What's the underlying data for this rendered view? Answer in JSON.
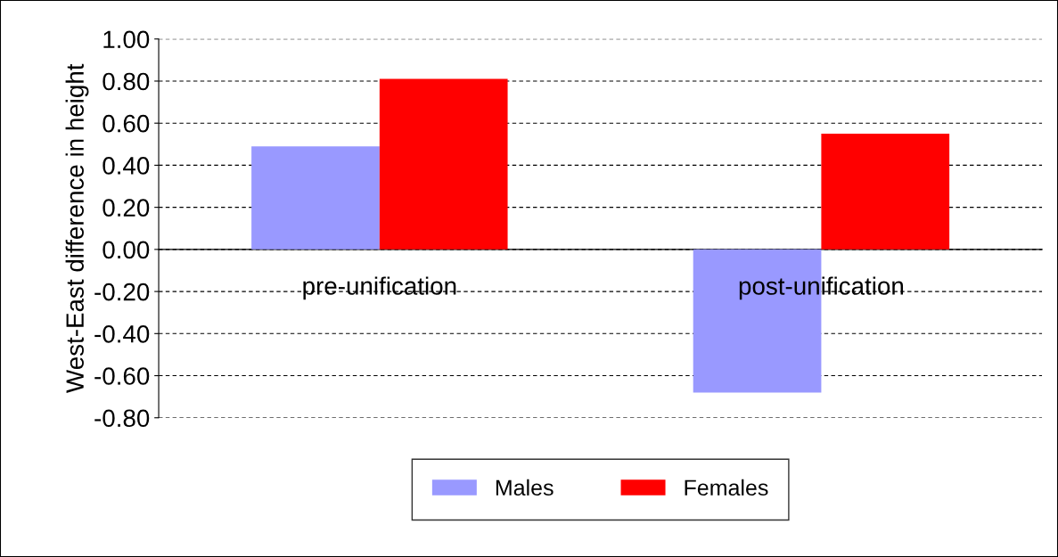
{
  "chart_data": {
    "type": "bar",
    "ylabel": "West-East difference in height",
    "categories": [
      "pre-unification",
      "post-unification"
    ],
    "series": [
      {
        "name": "Males",
        "color": "#9999ff",
        "values": [
          0.49,
          -0.68
        ]
      },
      {
        "name": "Females",
        "color": "#ff0000",
        "values": [
          0.81,
          0.55
        ]
      }
    ],
    "ylim": [
      -0.8,
      1.0
    ],
    "yticks": [
      {
        "value": -0.8,
        "label": "-0.80"
      },
      {
        "value": -0.6,
        "label": "-0.60"
      },
      {
        "value": -0.4,
        "label": "-0.40"
      },
      {
        "value": -0.2,
        "label": "-0.20"
      },
      {
        "value": 0,
        "label": "0.00"
      },
      {
        "value": 0.2,
        "label": "0.20"
      },
      {
        "value": 0.4,
        "label": "0.40"
      },
      {
        "value": 0.6,
        "label": "0.60"
      },
      {
        "value": 0.8,
        "label": "0.80"
      },
      {
        "value": 1.0,
        "label": "1.00"
      }
    ],
    "grid": "y",
    "legend": "bottom"
  }
}
